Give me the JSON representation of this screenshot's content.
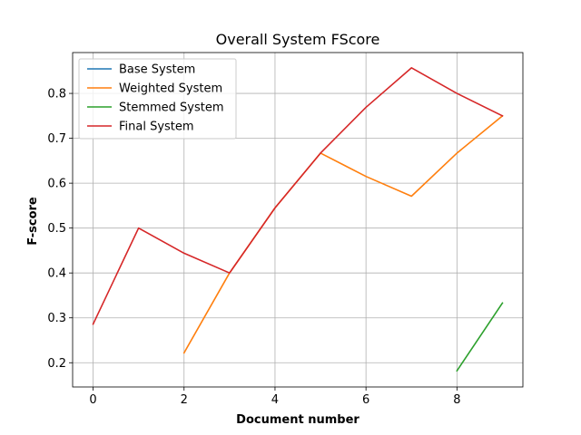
{
  "chart_data": {
    "type": "line",
    "title": "Overall System FScore",
    "xlabel": "Document number",
    "ylabel": "F-score",
    "xlim": [
      -0.45,
      9.45
    ],
    "ylim": [
      0.146,
      0.891
    ],
    "xticks": [
      0,
      2,
      4,
      6,
      8
    ],
    "xtick_labels": [
      "0",
      "2",
      "4",
      "6",
      "8"
    ],
    "yticks": [
      0.2,
      0.3,
      0.4,
      0.5,
      0.6,
      0.7,
      0.8
    ],
    "ytick_labels": [
      "0.2",
      "0.3",
      "0.4",
      "0.5",
      "0.6",
      "0.7",
      "0.8"
    ],
    "grid": true,
    "legend_position": "top-left",
    "series": [
      {
        "name": "Base System",
        "color": "#1f77b4",
        "x": [],
        "y": []
      },
      {
        "name": "Weighted System",
        "color": "#ff7f0e",
        "x": [
          2,
          3,
          4,
          5,
          6,
          7,
          8,
          9
        ],
        "y": [
          0.222,
          0.4,
          0.545,
          0.667,
          0.615,
          0.571,
          0.667,
          0.75
        ]
      },
      {
        "name": "Stemmed System",
        "color": "#2ca02c",
        "x": [
          8,
          9
        ],
        "y": [
          0.182,
          0.333
        ]
      },
      {
        "name": "Final System",
        "color": "#d62728",
        "x": [
          0,
          1,
          2,
          3,
          4,
          5,
          6,
          7,
          8,
          9
        ],
        "y": [
          0.286,
          0.5,
          0.444,
          0.4,
          0.545,
          0.667,
          0.769,
          0.857,
          0.8,
          0.75
        ]
      }
    ]
  }
}
